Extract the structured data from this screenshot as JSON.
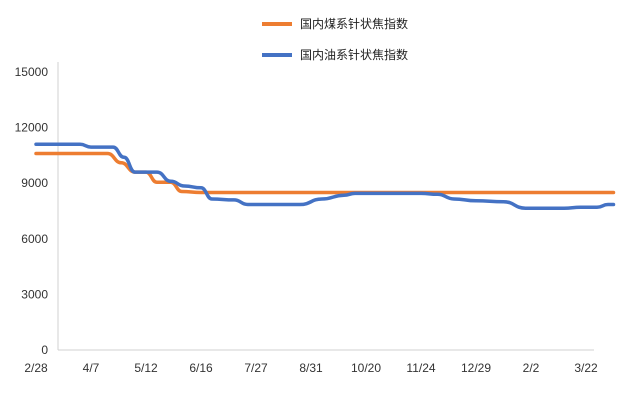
{
  "chart_data": {
    "type": "line",
    "title": "",
    "xlabel": "",
    "ylabel": "",
    "ylim": [
      0,
      15000
    ],
    "y_ticks": [
      0,
      3000,
      6000,
      9000,
      12000,
      15000
    ],
    "y_tick_labels": [
      "0",
      "3000",
      "6000",
      "9000",
      "12000",
      "15000"
    ],
    "x_tick_labels": [
      "2/28",
      "4/7",
      "5/12",
      "6/16",
      "7/27",
      "8/31",
      "10/20",
      "11/24",
      "12/29",
      "2/2",
      "3/22"
    ],
    "grid": false,
    "legend_position": "top-center",
    "series": [
      {
        "name": "国内煤系针状焦指数",
        "color": "#ED7D31",
        "points": [
          [
            0.0,
            10600
          ],
          [
            1.0,
            10600
          ],
          [
            1.3,
            10600
          ],
          [
            1.55,
            10100
          ],
          [
            1.8,
            9600
          ],
          [
            2.0,
            9600
          ],
          [
            2.2,
            9050
          ],
          [
            2.45,
            9050
          ],
          [
            2.65,
            8550
          ],
          [
            3.0,
            8500
          ],
          [
            4.0,
            8500
          ],
          [
            5.0,
            8500
          ],
          [
            6.0,
            8500
          ],
          [
            7.0,
            8500
          ],
          [
            8.0,
            8500
          ],
          [
            9.0,
            8500
          ],
          [
            10.0,
            8500
          ],
          [
            10.5,
            8500
          ]
        ]
      },
      {
        "name": "国内油系针状焦指数",
        "color": "#4472C4",
        "points": [
          [
            0.0,
            11100
          ],
          [
            0.8,
            11100
          ],
          [
            1.0,
            10950
          ],
          [
            1.4,
            10950
          ],
          [
            1.6,
            10400
          ],
          [
            1.8,
            9600
          ],
          [
            2.2,
            9600
          ],
          [
            2.45,
            9100
          ],
          [
            2.7,
            8850
          ],
          [
            3.0,
            8750
          ],
          [
            3.2,
            8150
          ],
          [
            3.6,
            8100
          ],
          [
            3.85,
            7850
          ],
          [
            4.8,
            7850
          ],
          [
            5.2,
            8150
          ],
          [
            5.6,
            8350
          ],
          [
            5.8,
            8450
          ],
          [
            6.5,
            8450
          ],
          [
            7.0,
            8450
          ],
          [
            7.3,
            8400
          ],
          [
            7.6,
            8150
          ],
          [
            8.0,
            8050
          ],
          [
            8.5,
            8000
          ],
          [
            8.9,
            7650
          ],
          [
            9.6,
            7650
          ],
          [
            9.9,
            7700
          ],
          [
            10.2,
            7700
          ],
          [
            10.4,
            7850
          ],
          [
            10.5,
            7850
          ]
        ]
      }
    ]
  }
}
